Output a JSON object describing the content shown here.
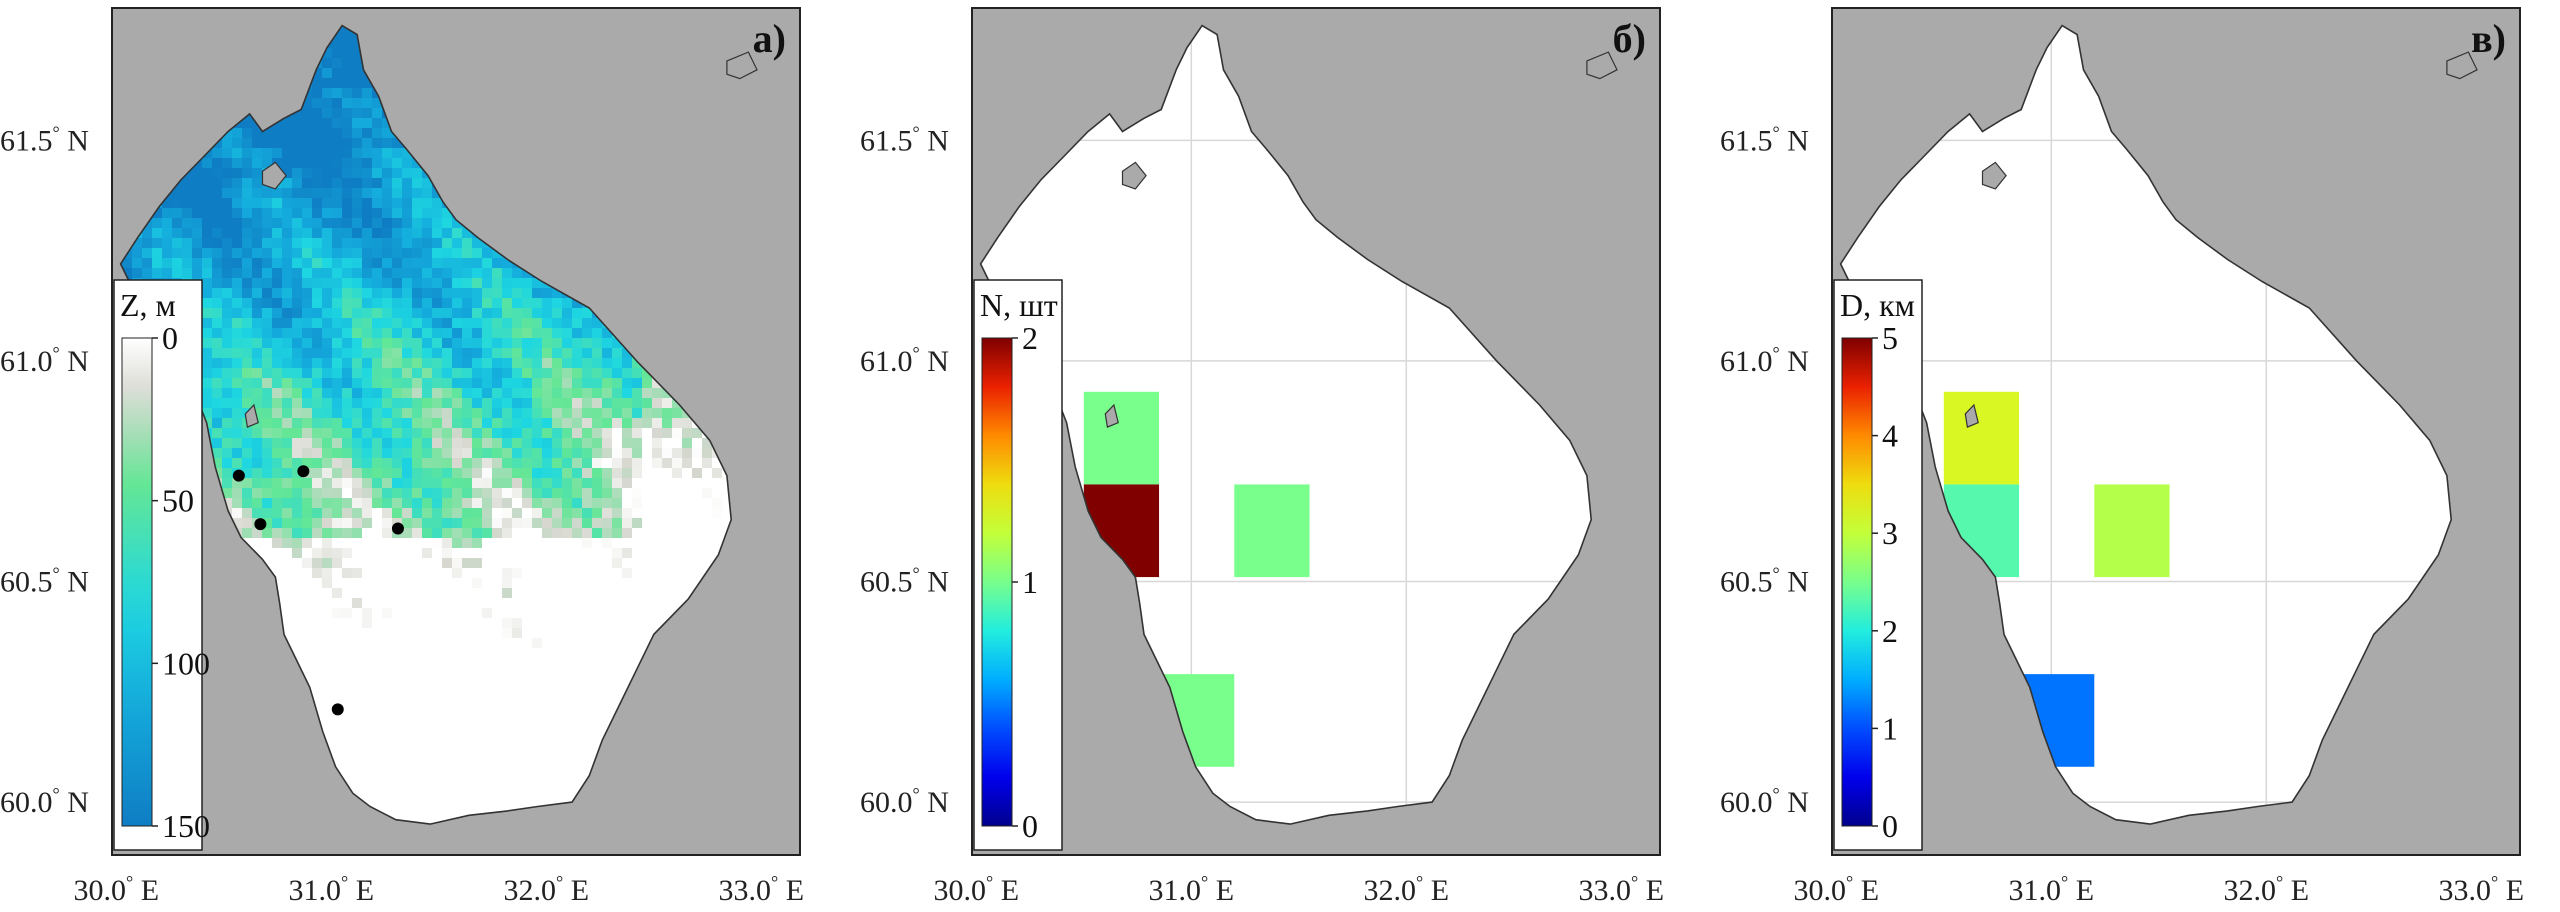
{
  "panels": [
    {
      "label": "а)",
      "colorbar": {
        "title": "Z, м",
        "ticks": [
          "0",
          "50",
          "100",
          "150"
        ],
        "colormap": "depth",
        "range": [
          0,
          150
        ]
      },
      "stations": [
        {
          "lon": 30.57,
          "lat": 60.74
        },
        {
          "lon": 30.87,
          "lat": 60.75
        },
        {
          "lon": 30.67,
          "lat": 60.63
        },
        {
          "lon": 31.31,
          "lat": 60.62
        },
        {
          "lon": 31.03,
          "lat": 60.21
        }
      ]
    },
    {
      "label": "б)",
      "colorbar": {
        "title": "N, шт",
        "ticks": [
          "2",
          "1",
          "0"
        ],
        "colormap": "jet",
        "range": [
          0,
          2
        ]
      },
      "cells": [
        {
          "lon": [
            30.5,
            30.85
          ],
          "lat": [
            60.72,
            60.93
          ],
          "value": 1
        },
        {
          "lon": [
            30.5,
            30.85
          ],
          "lat": [
            60.51,
            60.72
          ],
          "value": 2
        },
        {
          "lon": [
            31.2,
            31.55
          ],
          "lat": [
            60.51,
            60.72
          ],
          "value": 1
        },
        {
          "lon": [
            30.85,
            31.2
          ],
          "lat": [
            60.08,
            60.29
          ],
          "value": 1
        }
      ]
    },
    {
      "label": "в)",
      "colorbar": {
        "title": "D, км",
        "ticks": [
          "5",
          "4",
          "3",
          "2",
          "1",
          "0"
        ],
        "colormap": "jet",
        "range": [
          0,
          5
        ]
      },
      "cells": [
        {
          "lon": [
            30.5,
            30.85
          ],
          "lat": [
            60.72,
            60.93
          ],
          "value": 3.2
        },
        {
          "lon": [
            30.5,
            30.85
          ],
          "lat": [
            60.51,
            60.72
          ],
          "value": 2.3
        },
        {
          "lon": [
            31.2,
            31.55
          ],
          "lat": [
            60.51,
            60.72
          ],
          "value": 2.9
        },
        {
          "lon": [
            30.85,
            31.2
          ],
          "lat": [
            60.08,
            60.29
          ],
          "value": 1.2
        }
      ]
    }
  ],
  "axes": {
    "lat_ticks": [
      {
        "value": 61.5,
        "label": "61.5",
        "hemi": "N"
      },
      {
        "value": 61.0,
        "label": "61.0",
        "hemi": "N"
      },
      {
        "value": 60.5,
        "label": "60.5",
        "hemi": "N"
      },
      {
        "value": 60.0,
        "label": "60.0",
        "hemi": "N"
      }
    ],
    "lon_ticks": [
      {
        "value": 30.0,
        "label": "30.0",
        "hemi": "E"
      },
      {
        "value": 31.0,
        "label": "31.0",
        "hemi": "E"
      },
      {
        "value": 32.0,
        "label": "32.0",
        "hemi": "E"
      },
      {
        "value": 33.0,
        "label": "33.0",
        "hemi": "E"
      }
    ],
    "lon_range": [
      29.98,
      33.18
    ],
    "lat_range": [
      59.88,
      61.8
    ],
    "degree_symbol": "°"
  },
  "colors": {
    "land": "#aaaaaa",
    "lake": "#ffffff",
    "grid": "#d7d7d7",
    "station": "#000000"
  }
}
